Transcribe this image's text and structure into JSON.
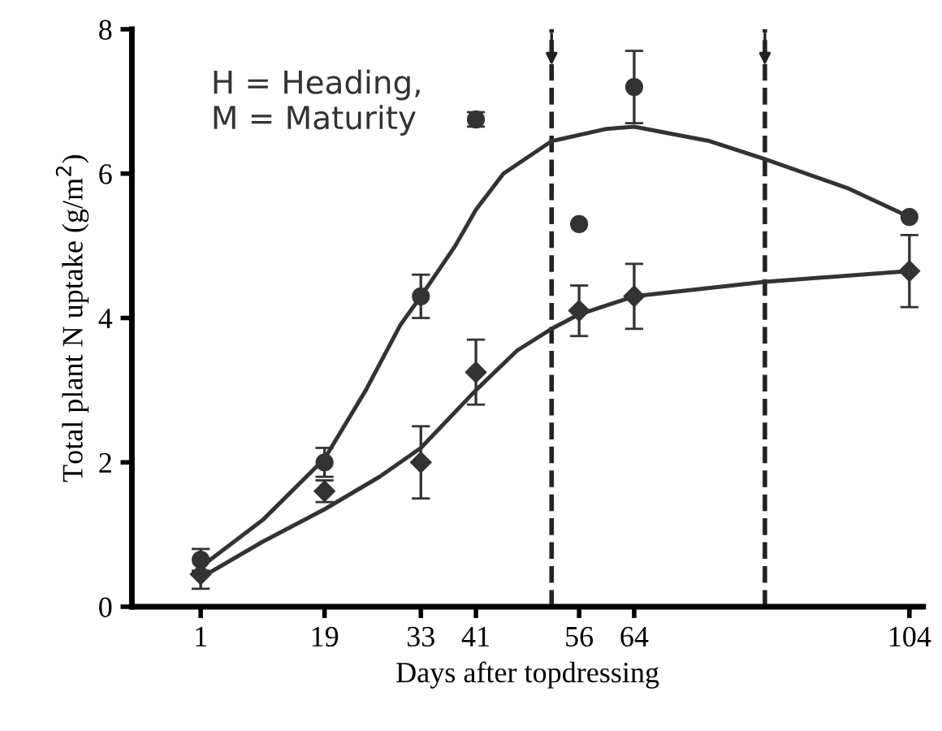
{
  "chart_data": {
    "type": "scatter",
    "xlabel": "Days after topdressing",
    "ylabel": "Total plant N uptake (g/m$^{2}$)",
    "xlim": [
      -9,
      106
    ],
    "ylim": [
      0,
      8
    ],
    "xticks": [
      1,
      19,
      33,
      41,
      56,
      64,
      104
    ],
    "yticks": [
      0,
      2,
      4,
      6,
      8
    ],
    "grid": false,
    "annotations": [
      "H = Heading,\nM = Maturity"
    ],
    "ref_lines": [
      {
        "axis": "x",
        "value": 52,
        "line_style": "dashed",
        "color": "#222222"
      },
      {
        "axis": "x",
        "value": 83,
        "line_style": "dashed",
        "color": "#222222"
      }
    ],
    "series": [
      {
        "marker": "circle",
        "color": "#333333",
        "x": [
          1,
          19,
          33,
          41,
          56,
          64,
          104
        ],
        "values": [
          0.65,
          2.0,
          4.3,
          6.75,
          5.3,
          7.2,
          5.4
        ],
        "errors": [
          0.15,
          0.2,
          0.3,
          0.1,
          null,
          0.5,
          null
        ]
      },
      {
        "marker": "diamond",
        "color": "#333333",
        "x": [
          1,
          19,
          33,
          41,
          56,
          64,
          104
        ],
        "values": [
          0.45,
          1.6,
          2.0,
          3.25,
          4.1,
          4.3,
          4.65
        ],
        "errors": [
          0.2,
          0.15,
          0.5,
          0.45,
          0.35,
          0.45,
          0.5
        ]
      },
      {
        "type": "line",
        "color": "#333333",
        "x": [
          1,
          10,
          19,
          25,
          30,
          33,
          38,
          41,
          45,
          52,
          60,
          64,
          75,
          83,
          95,
          104
        ],
        "values": [
          0.55,
          1.2,
          2.05,
          3.0,
          3.9,
          4.3,
          5.0,
          5.5,
          6.0,
          6.45,
          6.62,
          6.65,
          6.45,
          6.2,
          5.8,
          5.4
        ]
      },
      {
        "type": "line",
        "color": "#333333",
        "x": [
          1,
          10,
          19,
          27,
          33,
          41,
          47,
          52,
          56,
          64,
          83,
          104
        ],
        "values": [
          0.4,
          0.9,
          1.35,
          1.8,
          2.2,
          3.0,
          3.55,
          3.85,
          4.05,
          4.3,
          4.5,
          4.65
        ]
      }
    ]
  }
}
